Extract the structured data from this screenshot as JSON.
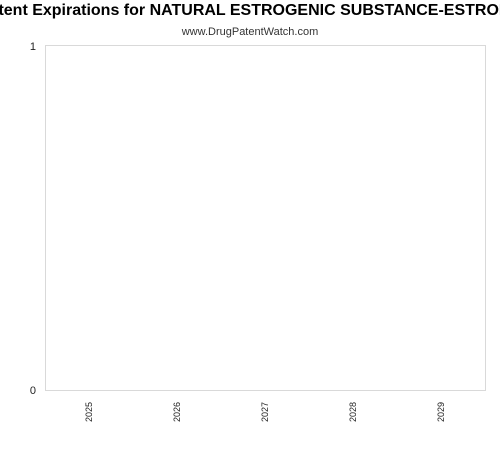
{
  "chart_data": {
    "type": "bar",
    "title": "Patent Expirations for NATURAL ESTROGENIC SUBSTANCE-ESTRONE",
    "subtitle": "www.DrugPatentWatch.com",
    "categories": [
      "2025",
      "2026",
      "2027",
      "2028",
      "2029"
    ],
    "values": [
      0,
      0,
      0,
      0,
      0
    ],
    "ylim": [
      0,
      1
    ],
    "yticks": [
      "0",
      "1"
    ],
    "xlabel": "",
    "ylabel": "",
    "grid": false,
    "legend": "none",
    "colors": {
      "frame": "#d9d9d9",
      "bar": "#4a7ebb"
    }
  }
}
